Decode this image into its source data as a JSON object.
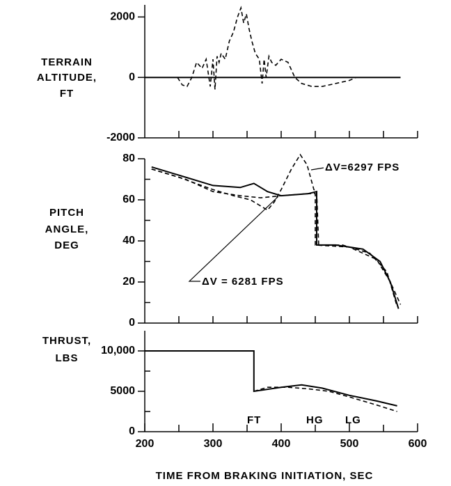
{
  "chart_data": [
    {
      "type": "line",
      "ylabel": [
        "TERRAIN",
        "ALTITUDE,",
        "FT"
      ],
      "xlim": [
        200,
        600
      ],
      "ylim": [
        -2000,
        2400
      ],
      "yticks": [
        -2000,
        0,
        2000
      ],
      "yminor": [],
      "xminor": [
        250,
        300,
        350,
        400,
        450,
        500,
        550,
        600
      ],
      "series": [
        {
          "color": "#000000",
          "dash": false,
          "x": [
            200,
            575
          ],
          "values": [
            0,
            0
          ]
        },
        {
          "color": "#000000",
          "dash": true,
          "x": [
            248,
            255,
            262,
            269,
            276,
            284,
            290,
            296,
            300,
            303,
            306,
            309,
            312,
            318,
            324,
            330,
            336,
            341,
            345,
            349,
            353,
            357,
            362,
            368,
            372,
            375,
            378,
            382,
            386,
            392,
            400,
            410,
            420,
            430,
            445,
            460,
            480,
            500,
            510
          ],
          "values": [
            0,
            -250,
            -300,
            0,
            500,
            300,
            600,
            -300,
            600,
            -400,
            700,
            500,
            800,
            600,
            1200,
            1500,
            2000,
            2300,
            1800,
            2100,
            1600,
            1200,
            800,
            600,
            -200,
            600,
            0,
            700,
            500,
            400,
            600,
            500,
            0,
            -200,
            -300,
            -300,
            -200,
            -100,
            0
          ]
        }
      ]
    },
    {
      "type": "line",
      "ylabel": [
        "PITCH",
        "ANGLE,",
        "DEG"
      ],
      "xlim": [
        200,
        600
      ],
      "ylim": [
        0,
        80
      ],
      "yticks": [
        0,
        20,
        40,
        60,
        80
      ],
      "yminor": [
        10,
        30,
        50,
        70
      ],
      "xminor": [
        250,
        300,
        350,
        400,
        450,
        500,
        550,
        600
      ],
      "annotations": [
        "ΔV=6297 FPS",
        "ΔV = 6281 FPS"
      ],
      "series": [
        {
          "color": "#000000",
          "dash": false,
          "x": [
            210,
            250,
            300,
            340,
            360,
            380,
            400,
            440,
            452,
            452,
            480,
            520,
            545,
            560,
            572
          ],
          "values": [
            76,
            72,
            67,
            66,
            68,
            64,
            62,
            63,
            64,
            38,
            38,
            36,
            30,
            20,
            7
          ]
        },
        {
          "color": "#000000",
          "dash": true,
          "x": [
            210,
            250,
            300,
            330,
            355,
            370,
            380,
            390,
            400,
            415,
            428,
            438,
            448,
            452,
            455,
            490,
            530,
            555,
            570
          ],
          "values": [
            75,
            71,
            65,
            62,
            60,
            57,
            55,
            59,
            65,
            75,
            82,
            77,
            65,
            64,
            38,
            38,
            34,
            25,
            8
          ]
        },
        {
          "color": "#000000",
          "dash": true,
          "x": [
            210,
            260,
            300,
            340,
            370,
            400,
            440,
            450,
            450,
            500,
            540,
            560,
            575
          ],
          "values": [
            75,
            70,
            64,
            62,
            61,
            62,
            63,
            63,
            38,
            37,
            31,
            20,
            9
          ]
        }
      ]
    },
    {
      "type": "line",
      "ylabel": [
        "THRUST,",
        "LBS"
      ],
      "xlim": [
        200,
        600
      ],
      "ylim": [
        0,
        12500
      ],
      "yticks": [
        0,
        5000,
        {
          "value": 10000,
          "label": "10,000"
        }
      ],
      "yminor": [
        2500,
        7500
      ],
      "xminor": [
        250,
        350,
        450,
        550
      ],
      "xticks": [
        200,
        300,
        400,
        500,
        600
      ],
      "xlabel": "TIME FROM BRAKING INITIATION, SEC",
      "annotations": [
        "FT",
        "HG",
        "LG"
      ],
      "series": [
        {
          "color": "#000000",
          "dash": false,
          "x": [
            200,
            360,
            360,
            400,
            430,
            460,
            500,
            540,
            570
          ],
          "values": [
            10000,
            10000,
            5000,
            5500,
            5800,
            5400,
            4500,
            3800,
            3200
          ]
        },
        {
          "color": "#000000",
          "dash": true,
          "x": [
            360,
            380,
            410,
            440,
            470,
            500,
            540,
            570
          ],
          "values": [
            5000,
            5500,
            5500,
            5300,
            5000,
            4300,
            3300,
            2500
          ]
        }
      ]
    }
  ]
}
